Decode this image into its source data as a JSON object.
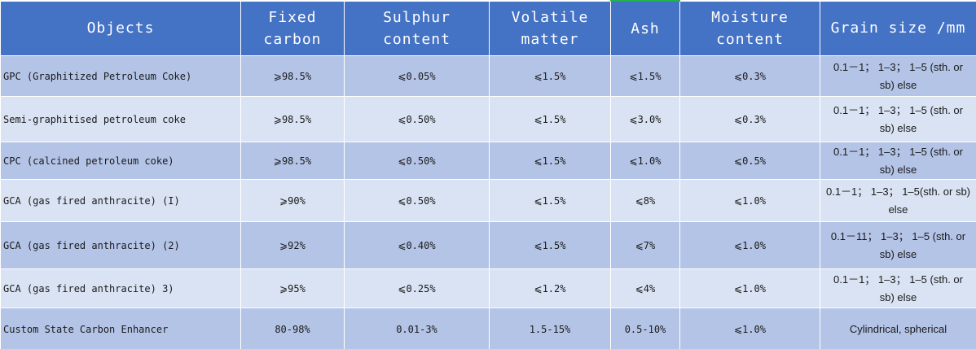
{
  "header": {
    "objects": "Objects",
    "fixed_carbon": "Fixed carbon",
    "sulphur": "Sulphur content",
    "volatile": "Volatile matter",
    "ash": "Ash",
    "moisture": "Moisture content",
    "grain": "Grain size /mm"
  },
  "rows": [
    {
      "object": "GPC (Graphitized Petroleum Coke)",
      "fixed_carbon": "⩾98.5%",
      "sulphur": "⩽0.05%",
      "volatile": "⩽1.5%",
      "ash": "⩽1.5%",
      "moisture": "⩽0.3%",
      "grain": "0.1－1； 1–3； 1–5 (sth. or sb) else"
    },
    {
      "object": "Semi-graphitised petroleum coke",
      "fixed_carbon": "⩾98.5%",
      "sulphur": "⩽0.50%",
      "volatile": "⩽1.5%",
      "ash": "⩽3.0%",
      "moisture": "⩽0.3%",
      "grain": "0.1－1； 1–3； 1–5 (sth. or sb) else"
    },
    {
      "object": "CPC (calcined petroleum coke)",
      "fixed_carbon": "⩾98.5%",
      "sulphur": "⩽0.50%",
      "volatile": "⩽1.5%",
      "ash": "⩽1.0%",
      "moisture": "⩽0.5%",
      "grain": "0.1－1； 1–3； 1–5 (sth. or sb) else"
    },
    {
      "object": "GCA (gas fired anthracite) (I)",
      "fixed_carbon": "⩾90%",
      "sulphur": "⩽0.50%",
      "volatile": "⩽1.5%",
      "ash": "⩽8%",
      "moisture": "⩽1.0%",
      "grain": "0.1－1； 1–3； 1–5(sth. or sb) else"
    },
    {
      "object": "GCA (gas fired anthracite) (2)",
      "fixed_carbon": "⩾92%",
      "sulphur": "⩽0.40%",
      "volatile": "⩽1.5%",
      "ash": "⩽7%",
      "moisture": "⩽1.0%",
      "grain": "0.1－11； 1–3； 1–5 (sth. or sb) else"
    },
    {
      "object": "GCA (gas fired anthracite) 3)",
      "fixed_carbon": "⩾95%",
      "sulphur": "⩽0.25%",
      "volatile": "⩽1.2%",
      "ash": "⩽4%",
      "moisture": "⩽1.0%",
      "grain": "0.1－1； 1–3； 1–5 (sth. or sb) else"
    },
    {
      "object": "Custom State Carbon Enhancer",
      "fixed_carbon": "80-98%",
      "sulphur": "0.01-3%",
      "volatile": "1.5-15%",
      "ash": "0.5-10%",
      "moisture": "⩽1.0%",
      "grain": "Cylindrical, spherical"
    }
  ],
  "colors": {
    "header_bg": "#4472c4",
    "row_dark": "#b4c4e7",
    "row_light": "#dae3f3",
    "ash_top_accent": "#22b14c"
  }
}
